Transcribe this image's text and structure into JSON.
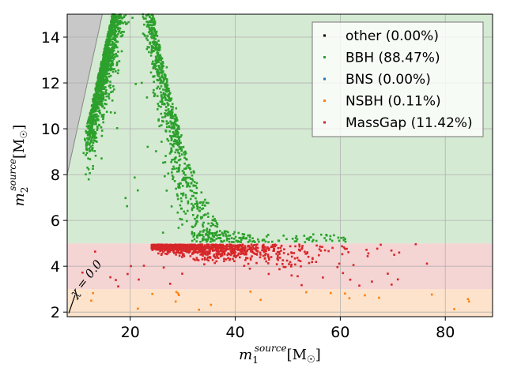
{
  "chart_data": {
    "type": "scatter",
    "title": "",
    "xlabel_main": "m",
    "xlabel_sup": "source",
    "xlabel_sub": "1",
    "xlabel_unit": "[M",
    "xlabel_unit_sub": "☉",
    "xlabel_unit_end": "]",
    "ylabel_main": "m",
    "ylabel_sup": "source",
    "ylabel_sub": "2",
    "ylabel_unit": "[M",
    "ylabel_unit_sub": "☉",
    "ylabel_unit_end": "]",
    "xlim": [
      8,
      89
    ],
    "ylim": [
      1.8,
      15
    ],
    "xticks": [
      20,
      40,
      60,
      80
    ],
    "yticks": [
      2,
      4,
      6,
      8,
      10,
      12,
      14
    ],
    "grid": true,
    "legend_position": "top-right",
    "regions": [
      {
        "name": "BNS",
        "y_from": 1.8,
        "y_to": 3,
        "color": "#fde3cb"
      },
      {
        "name": "MassGap",
        "y_from": 3,
        "y_to": 5,
        "color": "#f5d4d4"
      },
      {
        "name": "BBH",
        "y_from": 5,
        "y_to": 15,
        "color": "#d5ead3"
      }
    ],
    "excluded_region_color": "#c8c8c8",
    "annotation": "χ = 0.0",
    "series": [
      {
        "name": "other",
        "label": "other (0.00%)",
        "color": "#000000",
        "fraction": 0.0
      },
      {
        "name": "BBH",
        "label": "BBH (88.47%)",
        "color": "#2ca02c",
        "fraction": 88.47
      },
      {
        "name": "BNS",
        "label": "BNS (0.00%)",
        "color": "#1f77b4",
        "fraction": 0.0
      },
      {
        "name": "NSBH",
        "label": "NSBH (0.11%)",
        "color": "#ff7f0e",
        "fraction": 0.11
      },
      {
        "name": "MassGap",
        "label": "MassGap (11.42%)",
        "color": "#d62728",
        "fraction": 11.42
      }
    ]
  }
}
